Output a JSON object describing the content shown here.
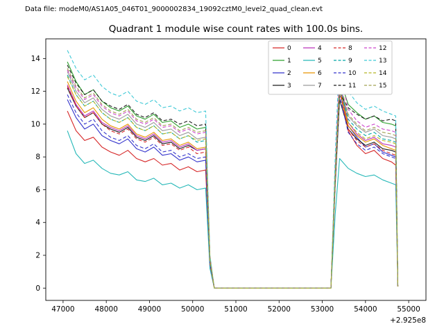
{
  "header": {
    "data_file_label": "Data file: modeM0/AS1A05_046T01_9000002834_19092cztM0_level2_quad_clean.evt"
  },
  "chart_data": {
    "type": "line",
    "title": "Quadrant 1 module wise count rates with 100.0s bins.",
    "xlabel": "",
    "ylabel": "",
    "x_offset_text": "+2.925e8",
    "xlim": [
      46600,
      55400
    ],
    "ylim": [
      -0.75,
      15.2
    ],
    "x_ticks": [
      47000,
      48000,
      49000,
      50000,
      51000,
      52000,
      53000,
      54000,
      55000
    ],
    "y_ticks": [
      0,
      2,
      4,
      6,
      8,
      10,
      12,
      14
    ],
    "grid": false,
    "legend_position": "upper center, 4 columns",
    "x": [
      47100,
      47300,
      47500,
      47700,
      47900,
      48100,
      48300,
      48500,
      48700,
      48900,
      49100,
      49300,
      49500,
      49700,
      49900,
      50100,
      50300,
      50400,
      50500,
      53200,
      53300,
      53400,
      53600,
      53800,
      54000,
      54200,
      54400,
      54600,
      54700,
      54750
    ],
    "series": [
      {
        "name": "0",
        "color": "#d62728",
        "dash": false,
        "values": [
          10.8,
          9.6,
          9.0,
          9.2,
          8.6,
          8.3,
          8.1,
          8.4,
          7.9,
          7.7,
          7.9,
          7.5,
          7.6,
          7.2,
          7.4,
          7.1,
          7.2,
          1.4,
          0,
          0,
          6.8,
          12.2,
          9.6,
          8.7,
          8.2,
          8.4,
          7.9,
          7.7,
          7.5,
          0.1
        ]
      },
      {
        "name": "1",
        "color": "#2ca02c",
        "dash": false,
        "values": [
          13.8,
          12.6,
          11.8,
          12.1,
          11.4,
          11.0,
          10.8,
          11.1,
          10.5,
          10.3,
          10.6,
          10.1,
          10.2,
          9.8,
          10.0,
          9.7,
          9.8,
          1.8,
          0,
          0,
          7.0,
          12.8,
          11.2,
          10.7,
          10.3,
          10.5,
          10.1,
          10.0,
          9.9,
          0.1
        ]
      },
      {
        "name": "2",
        "color": "#3333cc",
        "dash": false,
        "values": [
          11.5,
          10.4,
          9.7,
          10.0,
          9.3,
          9.0,
          8.8,
          9.1,
          8.5,
          8.3,
          8.6,
          8.1,
          8.2,
          7.8,
          8.0,
          7.7,
          7.8,
          1.5,
          0,
          0,
          6.9,
          12.4,
          9.9,
          9.2,
          8.6,
          8.8,
          8.3,
          8.1,
          8.0,
          0.1
        ]
      },
      {
        "name": "3",
        "color": "#1a1a1a",
        "dash": false,
        "values": [
          12.2,
          11.1,
          10.4,
          10.7,
          10.0,
          9.7,
          9.5,
          9.8,
          9.2,
          9.0,
          9.3,
          8.8,
          8.9,
          8.5,
          8.7,
          8.4,
          8.5,
          1.6,
          0,
          0,
          6.3,
          11.5,
          9.7,
          9.1,
          8.7,
          8.9,
          8.5,
          8.4,
          8.3,
          0.1
        ]
      },
      {
        "name": "4",
        "color": "#bb33bb",
        "dash": false,
        "values": [
          12.4,
          11.2,
          10.5,
          10.8,
          10.1,
          9.8,
          9.6,
          9.9,
          9.3,
          9.1,
          9.4,
          8.9,
          9.0,
          8.6,
          8.8,
          8.4,
          8.5,
          1.6,
          0,
          0,
          6.9,
          12.6,
          10.1,
          9.4,
          9.0,
          9.2,
          8.8,
          8.7,
          8.6,
          0.1
        ]
      },
      {
        "name": "5",
        "color": "#26b8b8",
        "dash": false,
        "values": [
          9.6,
          8.2,
          7.6,
          7.8,
          7.3,
          7.0,
          6.9,
          7.1,
          6.6,
          6.5,
          6.7,
          6.3,
          6.4,
          6.1,
          6.3,
          6.0,
          6.1,
          1.2,
          0,
          0,
          4.5,
          7.9,
          7.3,
          7.0,
          6.8,
          6.9,
          6.6,
          6.4,
          6.3,
          0.1
        ]
      },
      {
        "name": "6",
        "color": "#e69500",
        "dash": false,
        "values": [
          12.6,
          11.4,
          10.7,
          11.0,
          10.3,
          9.9,
          9.7,
          10.0,
          9.4,
          9.2,
          9.5,
          9.0,
          9.1,
          8.7,
          8.9,
          8.5,
          8.6,
          1.7,
          0,
          0,
          6.7,
          12.2,
          9.9,
          9.3,
          8.9,
          9.1,
          8.7,
          8.5,
          8.4,
          0.1
        ]
      },
      {
        "name": "7",
        "color": "#9a9a9a",
        "dash": false,
        "values": [
          13.2,
          12.0,
          11.3,
          11.6,
          10.9,
          10.5,
          10.3,
          10.6,
          10.0,
          9.8,
          10.1,
          9.6,
          9.7,
          9.3,
          9.5,
          9.1,
          9.2,
          1.7,
          0,
          0,
          6.9,
          12.5,
          10.5,
          9.9,
          9.5,
          9.7,
          9.3,
          9.2,
          9.1,
          0.1
        ]
      },
      {
        "name": "8",
        "color": "#d62728",
        "dash": true,
        "values": [
          12.3,
          11.1,
          10.4,
          10.7,
          10.0,
          9.6,
          9.4,
          9.7,
          9.1,
          8.9,
          9.2,
          8.7,
          8.8,
          8.4,
          8.6,
          8.2,
          8.3,
          1.5,
          0,
          0,
          6.6,
          12.0,
          9.7,
          9.0,
          8.6,
          8.8,
          8.4,
          8.2,
          8.1,
          0.1
        ]
      },
      {
        "name": "9",
        "color": "#00a8a8",
        "dash": true,
        "values": [
          13.0,
          11.8,
          11.1,
          11.4,
          10.7,
          10.3,
          10.1,
          10.4,
          9.8,
          9.6,
          9.9,
          9.4,
          9.5,
          9.1,
          9.3,
          8.9,
          9.0,
          1.7,
          0,
          0,
          6.8,
          12.3,
          10.3,
          9.7,
          9.3,
          9.5,
          9.1,
          9.0,
          8.9,
          0.1
        ]
      },
      {
        "name": "10",
        "color": "#3333cc",
        "dash": true,
        "values": [
          11.8,
          10.7,
          10.0,
          10.3,
          9.6,
          9.2,
          9.0,
          9.3,
          8.7,
          8.5,
          8.8,
          8.3,
          8.4,
          8.0,
          8.2,
          7.9,
          8.0,
          1.5,
          0,
          0,
          6.5,
          11.8,
          9.5,
          8.8,
          8.4,
          8.6,
          8.2,
          8.0,
          7.9,
          0.1
        ]
      },
      {
        "name": "11",
        "color": "#1a1a1a",
        "dash": true,
        "values": [
          13.6,
          12.5,
          11.8,
          12.1,
          11.4,
          11.1,
          10.9,
          11.2,
          10.6,
          10.4,
          10.7,
          10.2,
          10.3,
          10.0,
          10.2,
          9.9,
          10.0,
          1.9,
          0,
          0,
          6.9,
          11.9,
          11.0,
          10.6,
          10.3,
          10.5,
          10.2,
          10.3,
          10.2,
          0.1
        ]
      },
      {
        "name": "12",
        "color": "#cc44cc",
        "dash": true,
        "values": [
          13.3,
          12.2,
          11.5,
          11.8,
          11.1,
          10.7,
          10.5,
          10.8,
          10.2,
          10.0,
          10.3,
          9.8,
          9.9,
          9.5,
          9.7,
          9.4,
          9.5,
          1.8,
          0,
          0,
          7.4,
          13.3,
          10.9,
          10.2,
          9.8,
          10.0,
          9.7,
          9.6,
          9.5,
          0.1
        ]
      },
      {
        "name": "13",
        "color": "#3ec9d6",
        "dash": true,
        "values": [
          14.5,
          13.4,
          12.7,
          13.0,
          12.3,
          11.9,
          11.7,
          12.0,
          11.4,
          11.2,
          11.5,
          11.0,
          11.1,
          10.8,
          11.0,
          10.7,
          10.8,
          2.0,
          0,
          0,
          8.0,
          14.5,
          12.0,
          11.3,
          10.9,
          11.1,
          10.8,
          10.6,
          10.5,
          0.1
        ]
      },
      {
        "name": "14",
        "color": "#b5b523",
        "dash": true,
        "values": [
          12.9,
          11.8,
          11.1,
          11.4,
          10.7,
          10.3,
          10.1,
          10.4,
          9.8,
          9.6,
          9.9,
          9.4,
          9.5,
          9.1,
          9.3,
          9.0,
          9.1,
          1.7,
          0,
          0,
          6.7,
          12.1,
          10.1,
          9.5,
          9.1,
          9.3,
          9.0,
          8.9,
          8.8,
          0.1
        ]
      },
      {
        "name": "15",
        "color": "#a0a050",
        "dash": true,
        "values": [
          13.4,
          12.3,
          11.6,
          11.9,
          11.2,
          10.8,
          10.6,
          10.9,
          10.3,
          10.1,
          10.4,
          9.9,
          10.0,
          9.6,
          9.8,
          9.5,
          9.6,
          1.8,
          0,
          0,
          7.0,
          12.6,
          10.6,
          10.0,
          9.6,
          9.8,
          9.5,
          9.4,
          9.3,
          0.1
        ]
      }
    ]
  }
}
